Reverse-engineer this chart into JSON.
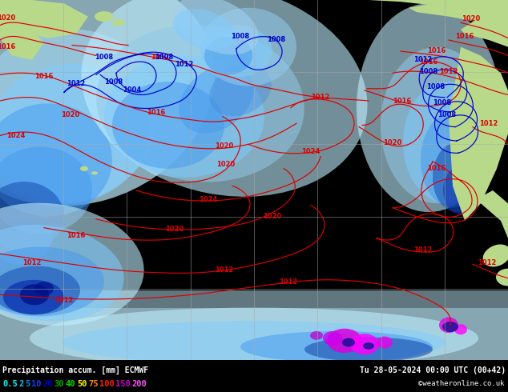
{
  "title_bottom_left": "Precipitation accum. [mm] ECMWF",
  "title_bottom_right": "Tu 28-05-2024 00:00 UTC (00+42)",
  "colorbar_values": [
    "0.5",
    "2",
    "5",
    "10",
    "20",
    "30",
    "40",
    "50",
    "75",
    "100",
    "150",
    "200"
  ],
  "colorbar_colors": [
    "#00ffff",
    "#00ccff",
    "#0088ff",
    "#0044ff",
    "#0000cc",
    "#00aa00",
    "#00dd00",
    "#ffff00",
    "#ff8800",
    "#ff2200",
    "#cc00cc",
    "#ff55ff"
  ],
  "credit": "©weatheronline.co.uk",
  "fig_width": 6.34,
  "fig_height": 4.9,
  "dpi": 100,
  "ocean_color": "#e8f4f8",
  "land_color_green": "#b8d88a",
  "land_color_light": "#c8e090",
  "grid_color": "#aaaaaa",
  "bottom_bar_color": "#000000",
  "bottom_text_color": "#ffffff",
  "precip_light_cyan": "#c0eeff",
  "precip_mid_blue": "#80ccff",
  "precip_blue": "#4499ee",
  "precip_dark_blue": "#1144aa",
  "precip_darkest": "#002288",
  "precip_magenta": "#ff44ff",
  "precip_dark_magenta": "#cc00cc"
}
